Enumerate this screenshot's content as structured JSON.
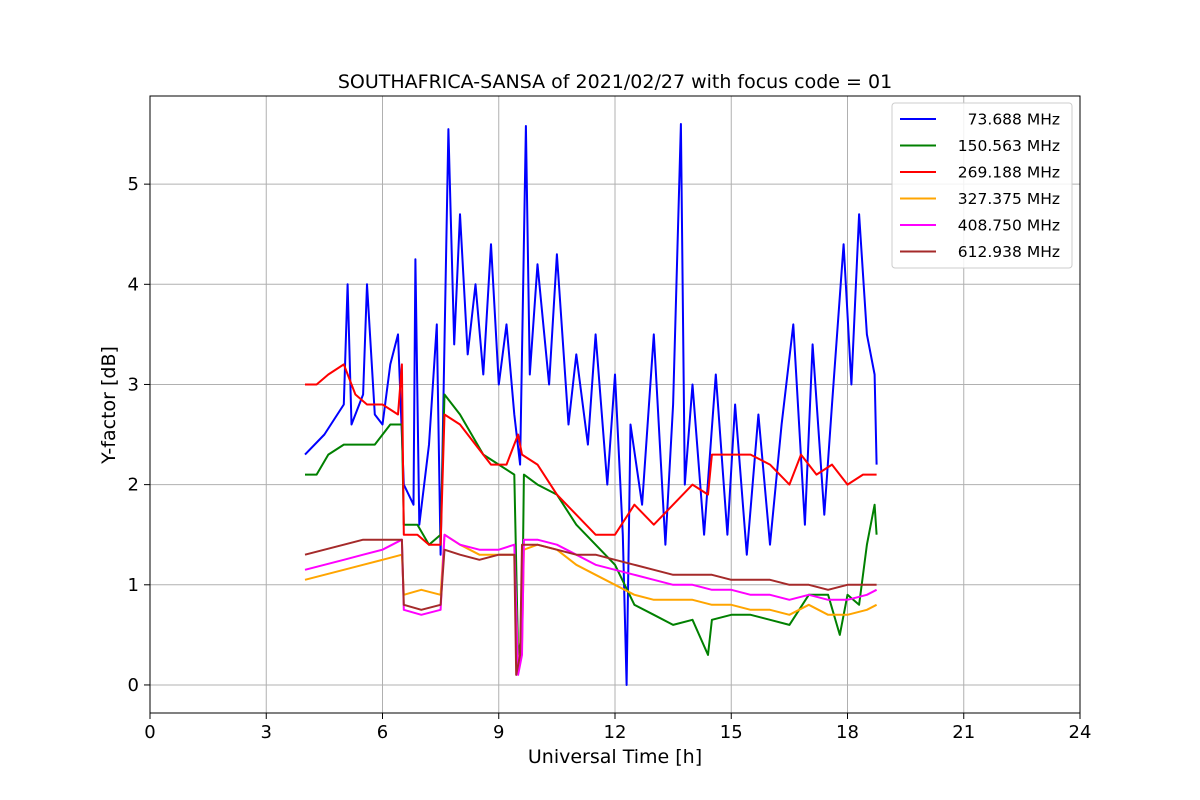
{
  "chart_data": {
    "type": "line",
    "title": "SOUTHAFRICA-SANSA of 2021/02/27 with focus code = 01",
    "xlabel": "Universal Time [h]",
    "ylabel": "Y-factor [dB]",
    "xlim": [
      0,
      24
    ],
    "ylim": [
      -0.28,
      5.88
    ],
    "xticks": [
      0,
      3,
      6,
      9,
      12,
      15,
      18,
      21,
      24
    ],
    "yticks": [
      0,
      1,
      2,
      3,
      4,
      5
    ],
    "grid": true,
    "legend_position": "top-right",
    "series": [
      {
        "name": "73.688 MHz",
        "color": "#0000ff",
        "points": [
          [
            4.0,
            2.3
          ],
          [
            4.5,
            2.5
          ],
          [
            5.0,
            2.8
          ],
          [
            5.1,
            4.0
          ],
          [
            5.2,
            2.6
          ],
          [
            5.5,
            2.9
          ],
          [
            5.6,
            4.0
          ],
          [
            5.8,
            2.7
          ],
          [
            6.0,
            2.6
          ],
          [
            6.2,
            3.2
          ],
          [
            6.4,
            3.5
          ],
          [
            6.55,
            2.0
          ],
          [
            6.8,
            1.8
          ],
          [
            6.85,
            4.25
          ],
          [
            6.95,
            1.6
          ],
          [
            7.2,
            2.4
          ],
          [
            7.4,
            3.6
          ],
          [
            7.5,
            1.3
          ],
          [
            7.7,
            5.55
          ],
          [
            7.85,
            3.4
          ],
          [
            8.0,
            4.7
          ],
          [
            8.2,
            3.3
          ],
          [
            8.4,
            4.0
          ],
          [
            8.6,
            3.1
          ],
          [
            8.8,
            4.4
          ],
          [
            9.0,
            3.0
          ],
          [
            9.2,
            3.6
          ],
          [
            9.4,
            2.7
          ],
          [
            9.55,
            2.2
          ],
          [
            9.7,
            5.58
          ],
          [
            9.8,
            3.1
          ],
          [
            10.0,
            4.2
          ],
          [
            10.3,
            3.0
          ],
          [
            10.5,
            4.3
          ],
          [
            10.8,
            2.6
          ],
          [
            11.0,
            3.3
          ],
          [
            11.3,
            2.4
          ],
          [
            11.5,
            3.5
          ],
          [
            11.8,
            2.0
          ],
          [
            12.0,
            3.1
          ],
          [
            12.2,
            1.5
          ],
          [
            12.3,
            0.0
          ],
          [
            12.4,
            2.6
          ],
          [
            12.7,
            1.8
          ],
          [
            13.0,
            3.5
          ],
          [
            13.3,
            1.4
          ],
          [
            13.5,
            2.8
          ],
          [
            13.7,
            5.6
          ],
          [
            13.8,
            2.0
          ],
          [
            14.0,
            3.0
          ],
          [
            14.3,
            1.5
          ],
          [
            14.6,
            3.1
          ],
          [
            14.9,
            1.5
          ],
          [
            15.1,
            2.8
          ],
          [
            15.4,
            1.3
          ],
          [
            15.7,
            2.7
          ],
          [
            16.0,
            1.4
          ],
          [
            16.3,
            2.6
          ],
          [
            16.6,
            3.6
          ],
          [
            16.9,
            1.6
          ],
          [
            17.1,
            3.4
          ],
          [
            17.4,
            1.7
          ],
          [
            17.6,
            2.8
          ],
          [
            17.9,
            4.4
          ],
          [
            18.1,
            3.0
          ],
          [
            18.3,
            4.7
          ],
          [
            18.5,
            3.5
          ],
          [
            18.7,
            3.1
          ],
          [
            18.75,
            2.2
          ]
        ]
      },
      {
        "name": "150.563 MHz",
        "color": "#008000",
        "points": [
          [
            4.0,
            2.1
          ],
          [
            4.3,
            2.1
          ],
          [
            4.6,
            2.3
          ],
          [
            5.0,
            2.4
          ],
          [
            5.4,
            2.4
          ],
          [
            5.8,
            2.4
          ],
          [
            6.2,
            2.6
          ],
          [
            6.5,
            2.6
          ],
          [
            6.55,
            1.6
          ],
          [
            6.9,
            1.6
          ],
          [
            7.2,
            1.4
          ],
          [
            7.5,
            1.5
          ],
          [
            7.6,
            2.9
          ],
          [
            8.0,
            2.7
          ],
          [
            8.3,
            2.5
          ],
          [
            8.6,
            2.3
          ],
          [
            9.0,
            2.2
          ],
          [
            9.4,
            2.1
          ],
          [
            9.5,
            0.3
          ],
          [
            9.6,
            0.5
          ],
          [
            9.65,
            2.1
          ],
          [
            10.0,
            2.0
          ],
          [
            10.5,
            1.9
          ],
          [
            11.0,
            1.6
          ],
          [
            11.5,
            1.4
          ],
          [
            12.0,
            1.2
          ],
          [
            12.5,
            0.8
          ],
          [
            13.0,
            0.7
          ],
          [
            13.5,
            0.6
          ],
          [
            14.0,
            0.65
          ],
          [
            14.4,
            0.3
          ],
          [
            14.5,
            0.65
          ],
          [
            15.0,
            0.7
          ],
          [
            15.5,
            0.7
          ],
          [
            16.0,
            0.65
          ],
          [
            16.5,
            0.6
          ],
          [
            17.0,
            0.9
          ],
          [
            17.5,
            0.9
          ],
          [
            17.8,
            0.5
          ],
          [
            18.0,
            0.9
          ],
          [
            18.3,
            0.8
          ],
          [
            18.5,
            1.4
          ],
          [
            18.7,
            1.8
          ],
          [
            18.75,
            1.5
          ]
        ]
      },
      {
        "name": "269.188 MHz",
        "color": "#ff0000",
        "points": [
          [
            4.0,
            3.0
          ],
          [
            4.3,
            3.0
          ],
          [
            4.6,
            3.1
          ],
          [
            5.0,
            3.2
          ],
          [
            5.3,
            2.9
          ],
          [
            5.6,
            2.8
          ],
          [
            6.0,
            2.8
          ],
          [
            6.4,
            2.7
          ],
          [
            6.5,
            3.2
          ],
          [
            6.55,
            1.5
          ],
          [
            6.9,
            1.5
          ],
          [
            7.2,
            1.4
          ],
          [
            7.5,
            1.4
          ],
          [
            7.6,
            2.7
          ],
          [
            8.0,
            2.6
          ],
          [
            8.4,
            2.4
          ],
          [
            8.8,
            2.2
          ],
          [
            9.2,
            2.2
          ],
          [
            9.5,
            2.5
          ],
          [
            9.6,
            2.3
          ],
          [
            10.0,
            2.2
          ],
          [
            10.5,
            1.9
          ],
          [
            11.0,
            1.7
          ],
          [
            11.5,
            1.5
          ],
          [
            12.0,
            1.5
          ],
          [
            12.5,
            1.8
          ],
          [
            13.0,
            1.6
          ],
          [
            13.5,
            1.8
          ],
          [
            14.0,
            2.0
          ],
          [
            14.4,
            1.9
          ],
          [
            14.5,
            2.3
          ],
          [
            15.0,
            2.3
          ],
          [
            15.5,
            2.3
          ],
          [
            16.0,
            2.2
          ],
          [
            16.5,
            2.0
          ],
          [
            16.8,
            2.3
          ],
          [
            17.2,
            2.1
          ],
          [
            17.6,
            2.2
          ],
          [
            18.0,
            2.0
          ],
          [
            18.4,
            2.1
          ],
          [
            18.75,
            2.1
          ]
        ]
      },
      {
        "name": "327.375 MHz",
        "color": "#ffa500",
        "points": [
          [
            4.0,
            1.05
          ],
          [
            4.5,
            1.1
          ],
          [
            5.0,
            1.15
          ],
          [
            5.5,
            1.2
          ],
          [
            6.0,
            1.25
          ],
          [
            6.5,
            1.3
          ],
          [
            6.55,
            0.9
          ],
          [
            7.0,
            0.95
          ],
          [
            7.5,
            0.9
          ],
          [
            7.6,
            1.5
          ],
          [
            8.0,
            1.4
          ],
          [
            8.5,
            1.3
          ],
          [
            9.0,
            1.3
          ],
          [
            9.4,
            1.3
          ],
          [
            9.5,
            0.2
          ],
          [
            9.6,
            0.4
          ],
          [
            9.65,
            1.35
          ],
          [
            10.0,
            1.4
          ],
          [
            10.5,
            1.35
          ],
          [
            11.0,
            1.2
          ],
          [
            11.5,
            1.1
          ],
          [
            12.0,
            1.0
          ],
          [
            12.5,
            0.9
          ],
          [
            13.0,
            0.85
          ],
          [
            13.5,
            0.85
          ],
          [
            14.0,
            0.85
          ],
          [
            14.5,
            0.8
          ],
          [
            15.0,
            0.8
          ],
          [
            15.5,
            0.75
          ],
          [
            16.0,
            0.75
          ],
          [
            16.5,
            0.7
          ],
          [
            17.0,
            0.8
          ],
          [
            17.5,
            0.7
          ],
          [
            18.0,
            0.7
          ],
          [
            18.5,
            0.75
          ],
          [
            18.75,
            0.8
          ]
        ]
      },
      {
        "name": "408.750 MHz",
        "color": "#ff00ff",
        "points": [
          [
            4.0,
            1.15
          ],
          [
            4.5,
            1.2
          ],
          [
            5.0,
            1.25
          ],
          [
            5.5,
            1.3
          ],
          [
            6.0,
            1.35
          ],
          [
            6.5,
            1.45
          ],
          [
            6.55,
            0.75
          ],
          [
            7.0,
            0.7
          ],
          [
            7.5,
            0.75
          ],
          [
            7.6,
            1.5
          ],
          [
            8.0,
            1.4
          ],
          [
            8.5,
            1.35
          ],
          [
            9.0,
            1.35
          ],
          [
            9.4,
            1.4
          ],
          [
            9.5,
            0.1
          ],
          [
            9.6,
            0.3
          ],
          [
            9.65,
            1.45
          ],
          [
            10.0,
            1.45
          ],
          [
            10.5,
            1.4
          ],
          [
            11.0,
            1.3
          ],
          [
            11.5,
            1.2
          ],
          [
            12.0,
            1.15
          ],
          [
            12.5,
            1.1
          ],
          [
            13.0,
            1.05
          ],
          [
            13.5,
            1.0
          ],
          [
            14.0,
            1.0
          ],
          [
            14.5,
            0.95
          ],
          [
            15.0,
            0.95
          ],
          [
            15.5,
            0.9
          ],
          [
            16.0,
            0.9
          ],
          [
            16.5,
            0.85
          ],
          [
            17.0,
            0.9
          ],
          [
            17.5,
            0.85
          ],
          [
            18.0,
            0.85
          ],
          [
            18.5,
            0.9
          ],
          [
            18.75,
            0.95
          ]
        ]
      },
      {
        "name": "612.938 MHz",
        "color": "#a52a2a",
        "points": [
          [
            4.0,
            1.3
          ],
          [
            4.5,
            1.35
          ],
          [
            5.0,
            1.4
          ],
          [
            5.5,
            1.45
          ],
          [
            6.0,
            1.45
          ],
          [
            6.5,
            1.45
          ],
          [
            6.55,
            0.8
          ],
          [
            7.0,
            0.75
          ],
          [
            7.5,
            0.8
          ],
          [
            7.6,
            1.35
          ],
          [
            8.0,
            1.3
          ],
          [
            8.5,
            1.25
          ],
          [
            9.0,
            1.3
          ],
          [
            9.4,
            1.3
          ],
          [
            9.45,
            0.1
          ],
          [
            9.55,
            0.3
          ],
          [
            9.6,
            1.4
          ],
          [
            10.0,
            1.4
          ],
          [
            10.5,
            1.35
          ],
          [
            11.0,
            1.3
          ],
          [
            11.5,
            1.3
          ],
          [
            12.0,
            1.25
          ],
          [
            12.5,
            1.2
          ],
          [
            13.0,
            1.15
          ],
          [
            13.5,
            1.1
          ],
          [
            14.0,
            1.1
          ],
          [
            14.5,
            1.1
          ],
          [
            15.0,
            1.05
          ],
          [
            15.5,
            1.05
          ],
          [
            16.0,
            1.05
          ],
          [
            16.5,
            1.0
          ],
          [
            17.0,
            1.0
          ],
          [
            17.5,
            0.95
          ],
          [
            18.0,
            1.0
          ],
          [
            18.5,
            1.0
          ],
          [
            18.75,
            1.0
          ]
        ]
      }
    ]
  }
}
